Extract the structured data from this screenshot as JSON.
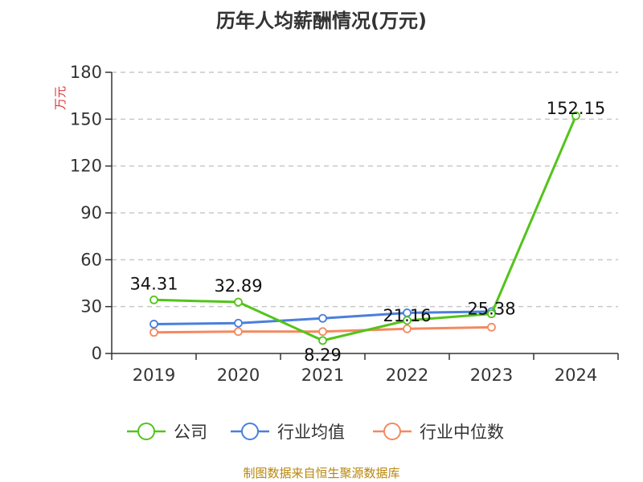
{
  "title": "历年人均薪酬情况(万元)",
  "footer": "制图数据来自恒生聚源数据库",
  "chart_data": {
    "type": "line",
    "title": "历年人均薪酬情况(万元)",
    "ylabel": "万元",
    "xlabel": "",
    "categories": [
      "2019",
      "2020",
      "2021",
      "2022",
      "2023",
      "2024"
    ],
    "ylim": [
      0,
      180
    ],
    "yticks": [
      0,
      30,
      60,
      90,
      120,
      150,
      180
    ],
    "grid": true,
    "legend_position": "bottom",
    "series": [
      {
        "name": "公司",
        "color": "#52c41a",
        "values": [
          34.31,
          32.89,
          8.29,
          21.16,
          25.38,
          152.15
        ],
        "labels": [
          "34.31",
          "32.89",
          "8.29",
          "21.16",
          "25.38",
          "152.15"
        ]
      },
      {
        "name": "行业均值",
        "color": "#4a7fdc",
        "values": [
          18.8,
          19.4,
          22.5,
          26.0,
          26.8,
          null
        ]
      },
      {
        "name": "行业中位数",
        "color": "#f4895f",
        "values": [
          13.5,
          14.0,
          14.0,
          15.8,
          16.8,
          null
        ]
      }
    ]
  }
}
